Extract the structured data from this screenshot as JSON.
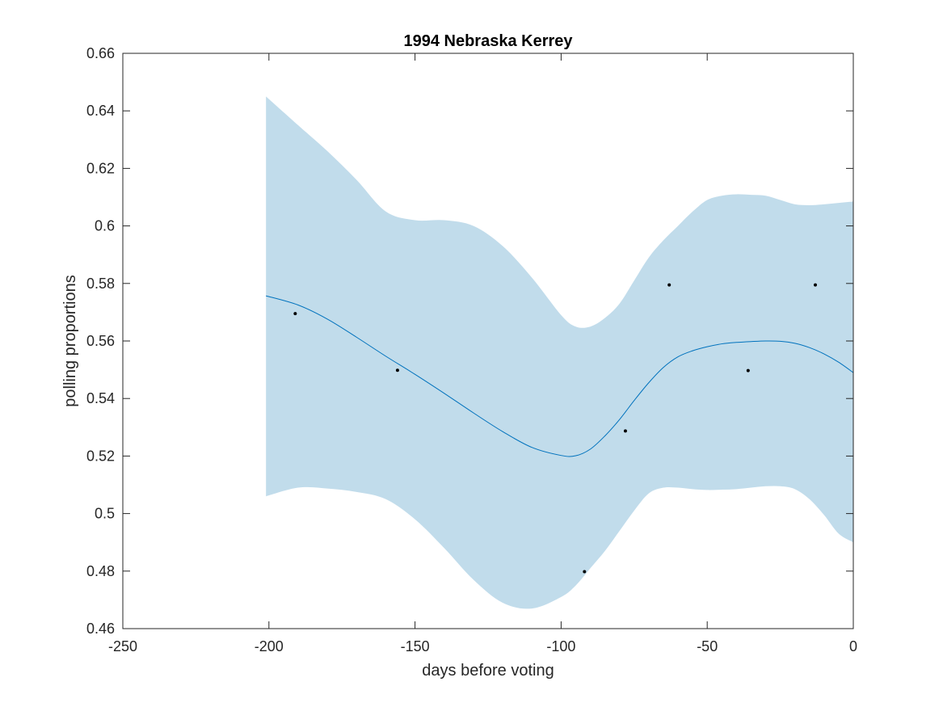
{
  "chart_data": {
    "type": "line",
    "title": "1994 Nebraska Kerrey",
    "xlabel": "days before voting",
    "ylabel": "polling proportions",
    "xlim": [
      -250,
      0
    ],
    "ylim": [
      0.46,
      0.66
    ],
    "x_ticks": [
      -250,
      -200,
      -150,
      -100,
      -50,
      0
    ],
    "x_tick_labels": [
      "-250",
      "-200",
      "-150",
      "-100",
      "-50",
      "0"
    ],
    "y_ticks": [
      0.46,
      0.48,
      0.5,
      0.52,
      0.54,
      0.56,
      0.58,
      0.6,
      0.62,
      0.64,
      0.66
    ],
    "y_tick_labels": [
      "0.46",
      "0.48",
      "0.5",
      "0.52",
      "0.54",
      "0.56",
      "0.58",
      "0.6",
      "0.62",
      "0.64",
      "0.66"
    ],
    "grid": false,
    "colors": {
      "band": "#c1dceb",
      "line": "#0072bd",
      "points": "#000000",
      "axes": "#262626"
    },
    "fit_line": {
      "x": [
        -201,
        -190,
        -180,
        -170,
        -160,
        -150,
        -140,
        -130,
        -120,
        -110,
        -100,
        -95,
        -90,
        -85,
        -80,
        -75,
        -70,
        -65,
        -60,
        -55,
        -50,
        -45,
        -40,
        -35,
        -30,
        -25,
        -20,
        -15,
        -10,
        -5,
        0
      ],
      "y": [
        0.5757,
        0.5725,
        0.5676,
        0.5613,
        0.5547,
        0.5484,
        0.5418,
        0.535,
        0.5285,
        0.523,
        0.5202,
        0.5201,
        0.5224,
        0.527,
        0.5327,
        0.5393,
        0.5455,
        0.5508,
        0.5545,
        0.5566,
        0.558,
        0.559,
        0.5595,
        0.5598,
        0.56,
        0.5599,
        0.5592,
        0.5577,
        0.5555,
        0.5526,
        0.549
      ]
    },
    "band_upper": {
      "x": [
        -201,
        -190,
        -180,
        -170,
        -160,
        -150,
        -140,
        -130,
        -120,
        -110,
        -100,
        -95,
        -90,
        -85,
        -80,
        -75,
        -70,
        -65,
        -60,
        -55,
        -50,
        -45,
        -40,
        -35,
        -30,
        -25,
        -20,
        -15,
        -10,
        -5,
        0
      ],
      "y": [
        0.645,
        0.635,
        0.626,
        0.616,
        0.605,
        0.602,
        0.602,
        0.6,
        0.593,
        0.582,
        0.569,
        0.565,
        0.565,
        0.568,
        0.573,
        0.581,
        0.589,
        0.595,
        0.6,
        0.605,
        0.609,
        0.6105,
        0.611,
        0.6108,
        0.6105,
        0.609,
        0.6075,
        0.6072,
        0.6075,
        0.608,
        0.6085
      ]
    },
    "band_lower": {
      "x": [
        -201,
        -190,
        -180,
        -170,
        -160,
        -150,
        -140,
        -130,
        -120,
        -110,
        -100,
        -95,
        -90,
        -85,
        -80,
        -75,
        -70,
        -65,
        -60,
        -55,
        -50,
        -45,
        -40,
        -35,
        -30,
        -25,
        -20,
        -15,
        -10,
        -5,
        0
      ],
      "y": [
        0.506,
        0.509,
        0.5087,
        0.5075,
        0.505,
        0.498,
        0.488,
        0.477,
        0.469,
        0.467,
        0.471,
        0.475,
        0.481,
        0.487,
        0.494,
        0.501,
        0.507,
        0.509,
        0.509,
        0.5085,
        0.5082,
        0.5083,
        0.5085,
        0.509,
        0.5095,
        0.5095,
        0.5085,
        0.505,
        0.4995,
        0.493,
        0.49
      ]
    },
    "points": {
      "x": [
        -191,
        -156,
        -92,
        -78,
        -63,
        -36,
        -13
      ],
      "y": [
        0.5695,
        0.5498,
        0.4798,
        0.5287,
        0.5795,
        0.5497,
        0.5795
      ]
    }
  }
}
